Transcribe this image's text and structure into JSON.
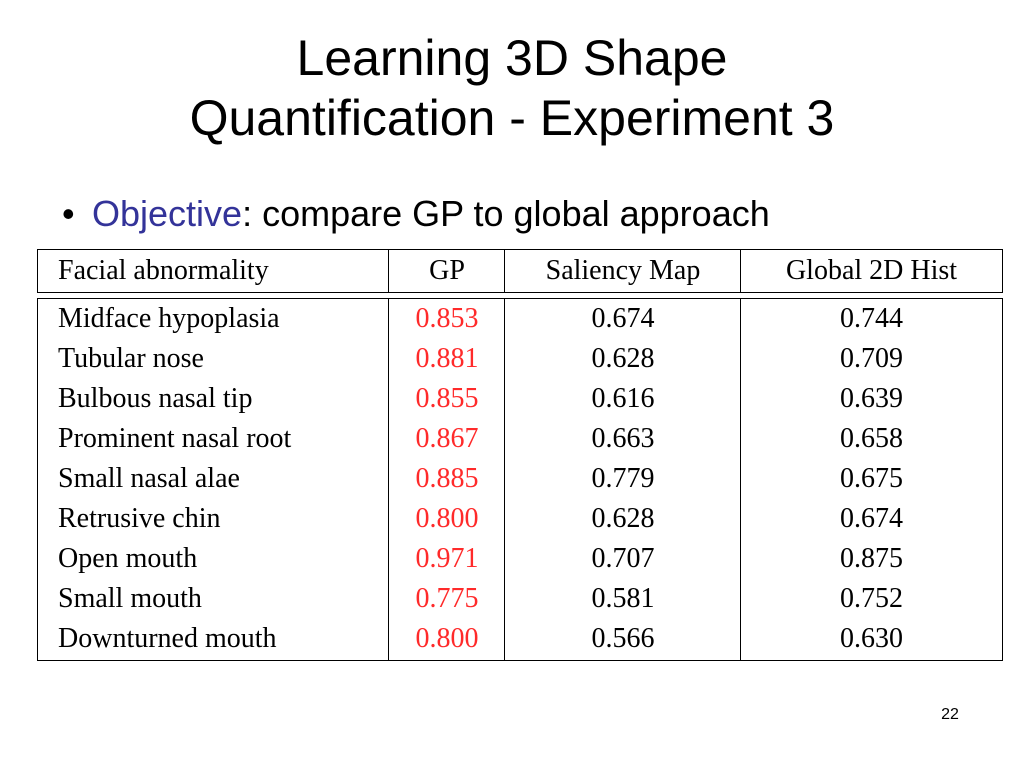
{
  "title": {
    "line1": "Learning 3D Shape",
    "line2": "Quantification - Experiment 3"
  },
  "bullet": {
    "symbol": "•",
    "keyword": "Objective",
    "text": ": compare GP to global approach"
  },
  "table": {
    "headers": [
      "Facial abnormality",
      "GP",
      "Saliency Map",
      "Global 2D Hist"
    ],
    "rows": [
      [
        "Midface hypoplasia",
        "0.853",
        "0.674",
        "0.744"
      ],
      [
        "Tubular nose",
        "0.881",
        "0.628",
        "0.709"
      ],
      [
        "Bulbous nasal tip",
        "0.855",
        "0.616",
        "0.639"
      ],
      [
        "Prominent nasal root",
        "0.867",
        "0.663",
        "0.658"
      ],
      [
        "Small nasal alae",
        "0.885",
        "0.779",
        "0.675"
      ],
      [
        "Retrusive chin",
        "0.800",
        "0.628",
        "0.674"
      ],
      [
        "Open mouth",
        "0.971",
        "0.707",
        "0.875"
      ],
      [
        "Small mouth",
        "0.775",
        "0.581",
        "0.752"
      ],
      [
        "Downturned mouth",
        "0.800",
        "0.566",
        "0.630"
      ]
    ],
    "highlight_color": "#ff2a2a"
  },
  "page_number": "22"
}
